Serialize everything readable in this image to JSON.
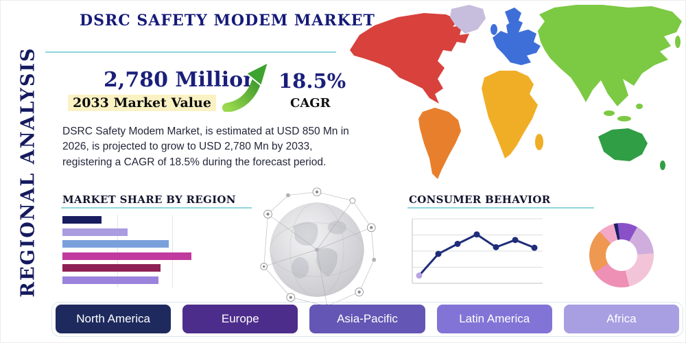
{
  "page": {
    "title": "DSRC SAFETY MODEM MARKET",
    "side_label": "REGIONAL ANALYSIS"
  },
  "stats": {
    "market_value": "2,780 Million",
    "market_value_label": "2033 Market Value",
    "cagr_value": "18.5%",
    "cagr_label": "CAGR",
    "description": "DSRC Safety Modem Market, is estimated at USD 850 Mn in 2026, is projected to grow to USD 2,780 Mn by 2033, registering a CAGR of 18.5% during the forecast period."
  },
  "regions": [
    {
      "label": "North America",
      "color": "#1e2a5e"
    },
    {
      "label": "Europe",
      "color": "#4d2d8c"
    },
    {
      "label": "Asia-Pacific",
      "color": "#6456b4"
    },
    {
      "label": "Latin America",
      "color": "#8274d6"
    },
    {
      "label": "Africa",
      "color": "#a89ee2"
    }
  ],
  "map": {
    "regions": {
      "north-america": "#d8413c",
      "greenland": "#c7bedd",
      "south-america": "#e87f2d",
      "europe": "#3e6fd9",
      "africa": "#f0ae27",
      "asia": "#7cc943",
      "australia": "#2f9e44",
      "islands": "#7cc943"
    }
  },
  "chart_data": [
    {
      "type": "bar",
      "title": "MARKET SHARE BY REGION",
      "orientation": "horizontal",
      "values": [
        57,
        95,
        155,
        188,
        143,
        140
      ],
      "xlim": [
        0,
        200
      ],
      "colors": [
        "#181d60",
        "#a99ce0",
        "#7aa0dc",
        "#c13a9e",
        "#8e2155",
        "#9b82dc"
      ],
      "grid": true
    },
    {
      "type": "line",
      "title": "CONSUMER BEHAVIOR",
      "x": [
        1,
        2,
        3,
        4,
        5,
        6,
        7
      ],
      "values": [
        14,
        53,
        71,
        88,
        65,
        78,
        64
      ],
      "ylim": [
        0,
        100
      ],
      "color": "#1f2d7a",
      "first_marker_color": "#b7a6e4",
      "grid": true
    },
    {
      "type": "pie",
      "donut": true,
      "start_angle_deg": -14,
      "slices": [
        {
          "value": 2,
          "color": "#1b2166"
        },
        {
          "value": 10,
          "color": "#8a50c8"
        },
        {
          "value": 16,
          "color": "#cfaede"
        },
        {
          "value": 22,
          "color": "#f3c3d8"
        },
        {
          "value": 20,
          "color": "#ee8fb5"
        },
        {
          "value": 22,
          "color": "#ee9852"
        },
        {
          "value": 8,
          "color": "#f2a8c6"
        }
      ]
    }
  ]
}
